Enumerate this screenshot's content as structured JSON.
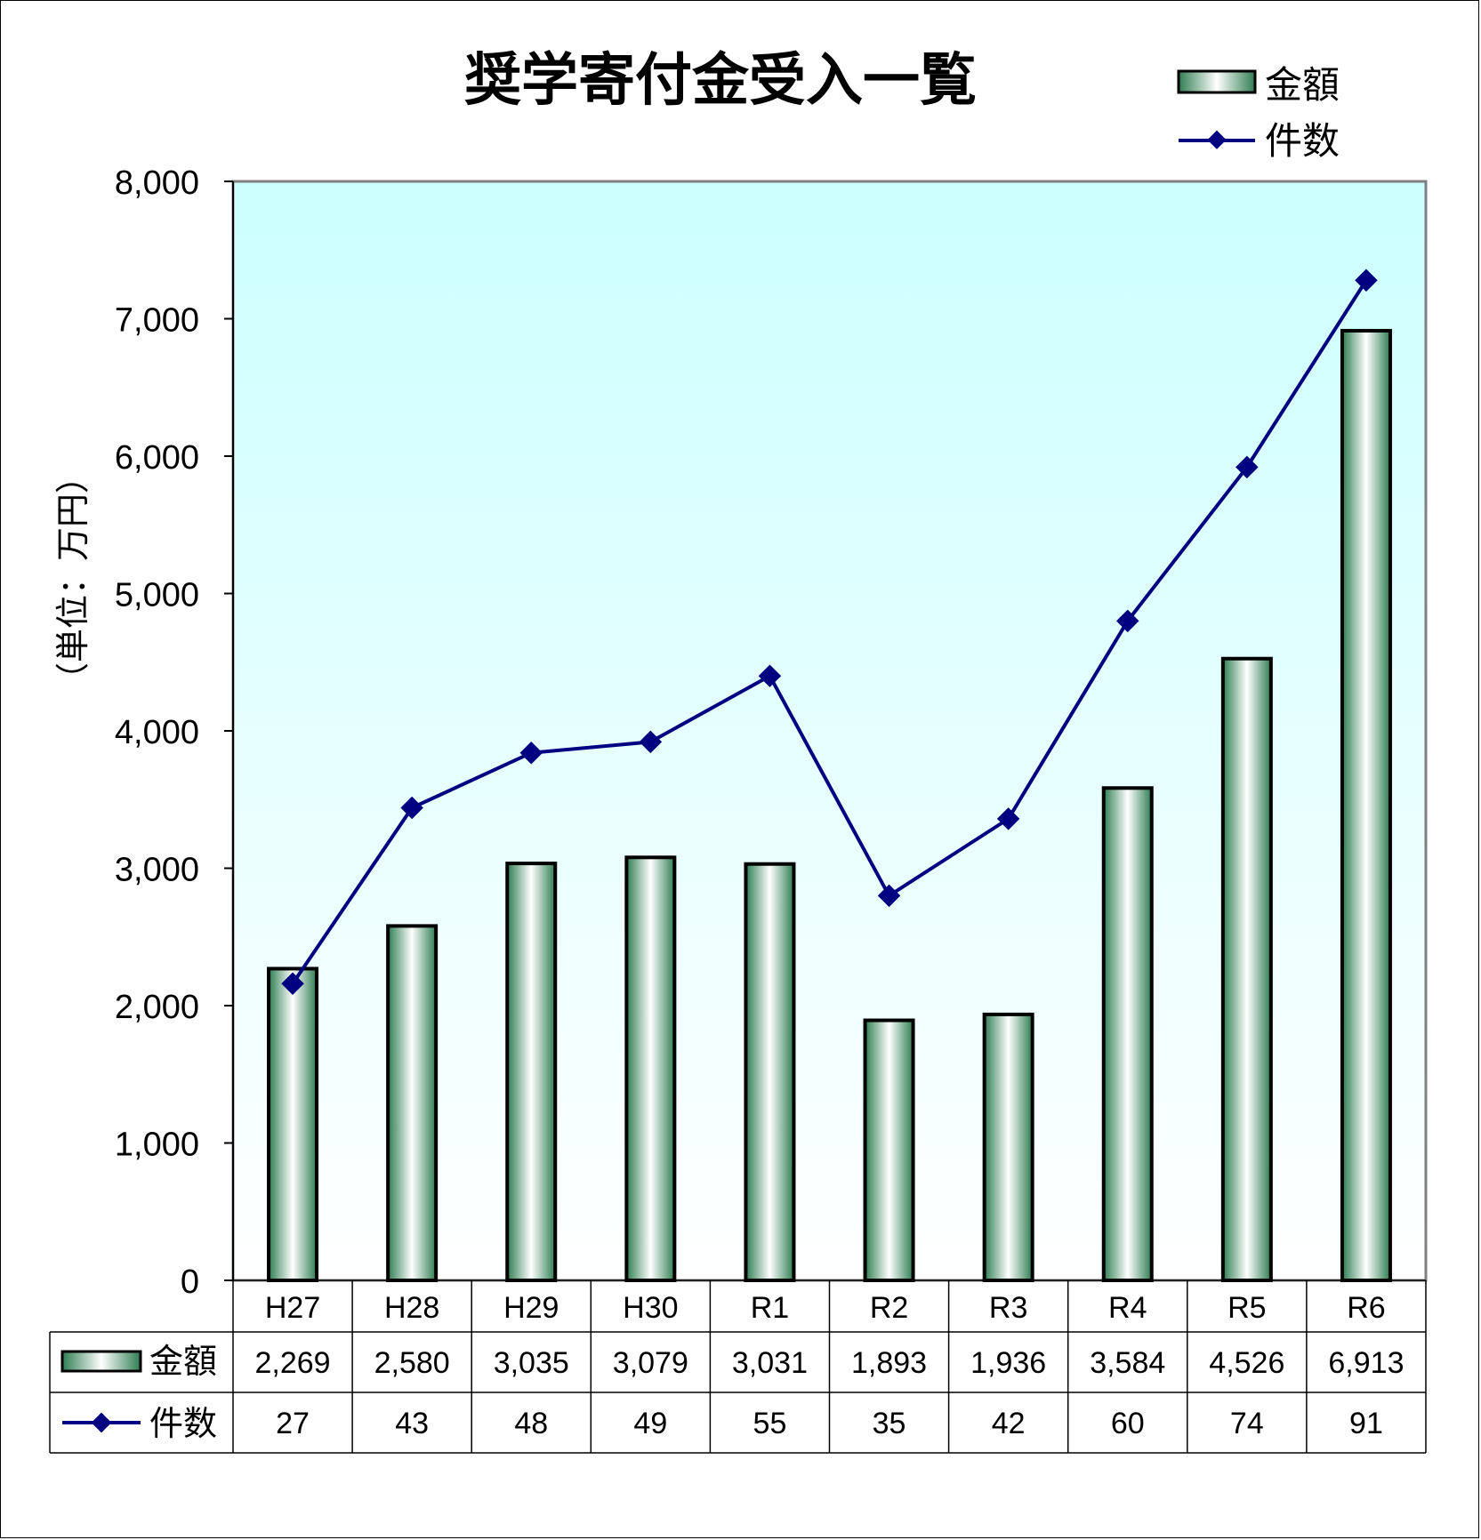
{
  "chart_data": {
    "type": "bar",
    "title": "奨学寄付金受入一覧",
    "ylabel": "（単位：万円）",
    "ylim": [
      0,
      8000
    ],
    "yticks": [
      "0",
      "1,000",
      "2,000",
      "3,000",
      "4,000",
      "5,000",
      "6,000",
      "7,000",
      "8,000"
    ],
    "categories": [
      "H27",
      "H28",
      "H29",
      "H30",
      "R1",
      "R2",
      "R3",
      "R4",
      "R5",
      "R6"
    ],
    "legend_position": "top-right",
    "grid": false,
    "series": [
      {
        "name": "金額",
        "type": "bar",
        "values": [
          2269,
          2580,
          3035,
          3079,
          3031,
          1893,
          1936,
          3584,
          4526,
          6913
        ],
        "labels": [
          "2,269",
          "2,580",
          "3,035",
          "3,079",
          "3,031",
          "1,893",
          "1,936",
          "3,584",
          "4,526",
          "6,913"
        ]
      },
      {
        "name": "件数",
        "type": "line",
        "values": [
          27,
          43,
          48,
          49,
          55,
          35,
          42,
          60,
          74,
          91
        ],
        "labels": [
          "27",
          "43",
          "48",
          "49",
          "55",
          "35",
          "42",
          "60",
          "74",
          "91"
        ]
      }
    ]
  },
  "colors": {
    "plot_bg_top": "#ccffff",
    "plot_bg_bottom": "#ffffff",
    "bar_edge": "#2e7d52",
    "bar_center": "#ffffff",
    "line": "#000080"
  }
}
